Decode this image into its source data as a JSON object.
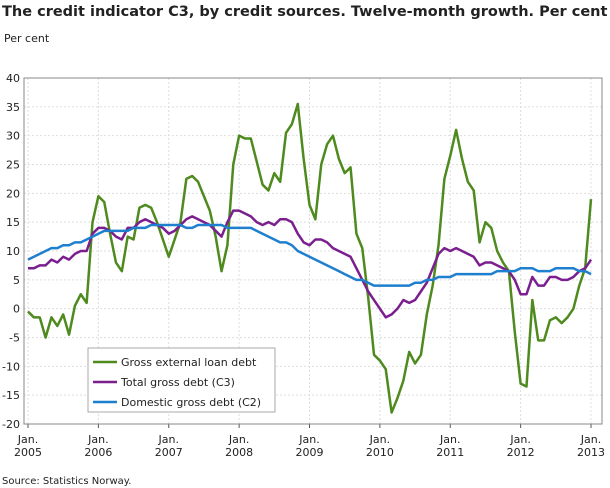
{
  "chart_data": {
    "type": "line",
    "title": "The credit indicator C3, by credit sources. Twelve-month growth. Per cent",
    "y_label": "Per cent",
    "source": "Source: Statistics Norway.",
    "categories": [
      "Jan. 2005",
      null,
      null,
      null,
      null,
      null,
      null,
      null,
      null,
      null,
      null,
      null,
      "Jan. 2006",
      null,
      null,
      null,
      null,
      null,
      null,
      null,
      null,
      null,
      null,
      null,
      "Jan. 2007",
      null,
      null,
      null,
      null,
      null,
      null,
      null,
      null,
      null,
      null,
      null,
      "Jan. 2008",
      null,
      null,
      null,
      null,
      null,
      null,
      null,
      null,
      null,
      null,
      null,
      "Jan. 2009",
      null,
      null,
      null,
      null,
      null,
      null,
      null,
      null,
      null,
      null,
      null,
      "Jan. 2010",
      null,
      null,
      null,
      null,
      null,
      null,
      null,
      null,
      null,
      null,
      null,
      "Jan. 2011",
      null,
      null,
      null,
      null,
      null,
      null,
      null,
      null,
      null,
      null,
      null,
      "Jan. 2012",
      null,
      null,
      null,
      null,
      null,
      null,
      null,
      null,
      null,
      null,
      null,
      "Jan. 2013"
    ],
    "series": [
      {
        "name": "Gross external loan debt",
        "color": "#4e8a1e",
        "values": [
          -0.5,
          -1.5,
          -1.5,
          -5,
          -1.5,
          -3,
          -1,
          -4.5,
          0.5,
          2.5,
          1,
          15,
          19.5,
          18.5,
          13,
          8,
          6.5,
          12.5,
          12,
          17.5,
          18,
          17.5,
          15,
          12,
          9,
          12,
          15,
          22.5,
          23,
          22,
          19.5,
          17,
          12.5,
          6.5,
          11,
          25,
          30,
          29.5,
          29.5,
          25.5,
          21.5,
          20.5,
          23.5,
          22,
          30.5,
          32,
          35.5,
          26,
          18,
          15.5,
          25,
          28.5,
          30,
          26,
          23.5,
          24.5,
          13,
          10.5,
          2,
          -8,
          -9,
          -10.5,
          -18,
          -15.5,
          -12.5,
          -7.5,
          -9.5,
          -8,
          -1,
          4,
          11,
          22.5,
          26.5,
          31,
          26,
          22,
          20.5,
          11.5,
          15,
          14,
          10,
          8,
          6.5,
          -4,
          -13,
          -13.5,
          1.5,
          -5.5,
          -5.5,
          -2,
          -1.5,
          -2.5,
          -1.5,
          0,
          4,
          7,
          19
        ]
      },
      {
        "name": "Total gross debt (C3)",
        "color": "#7b1f8f",
        "values": [
          7,
          7,
          7.5,
          7.5,
          8.5,
          8,
          9,
          8.5,
          9.5,
          10,
          10,
          13,
          14,
          14,
          13.5,
          12.5,
          12,
          14,
          14,
          15,
          15.5,
          15,
          14.5,
          14,
          13,
          13.5,
          14.5,
          15.5,
          16,
          15.5,
          15,
          14.5,
          13.5,
          12.5,
          15,
          17,
          17,
          16.5,
          16,
          15,
          14.5,
          15,
          14.5,
          15.5,
          15.5,
          15,
          13,
          11.5,
          11,
          12,
          12,
          11.5,
          10.5,
          10,
          9.5,
          9,
          7,
          5,
          3,
          1.5,
          0,
          -1.5,
          -1,
          0,
          1.5,
          1,
          1.5,
          3,
          4.5,
          7,
          9.5,
          10.5,
          10,
          10.5,
          10,
          9.5,
          9,
          7.5,
          8,
          8,
          7.5,
          7,
          6.5,
          5,
          2.5,
          2.5,
          5.5,
          4,
          4,
          5.5,
          5.5,
          5,
          5,
          5.5,
          6.5,
          7,
          8.5
        ]
      },
      {
        "name": "Domestic gross debt (C2)",
        "color": "#1f7fcf",
        "values": [
          8.5,
          9,
          9.5,
          10,
          10.5,
          10.5,
          11,
          11,
          11.5,
          11.5,
          12,
          12.5,
          13,
          13.5,
          13.5,
          13.5,
          13.5,
          13.5,
          14,
          14,
          14,
          14.5,
          14.5,
          14.5,
          14.5,
          14.5,
          14.5,
          14,
          14,
          14.5,
          14.5,
          14.5,
          14.5,
          14.5,
          14,
          14,
          14,
          14,
          14,
          13.5,
          13,
          12.5,
          12,
          11.5,
          11.5,
          11,
          10,
          9.5,
          9,
          8.5,
          8,
          7.5,
          7,
          6.5,
          6,
          5.5,
          5,
          5,
          4.5,
          4,
          4,
          4,
          4,
          4,
          4,
          4,
          4.5,
          4.5,
          5,
          5,
          5.5,
          5.5,
          5.5,
          6,
          6,
          6,
          6,
          6,
          6,
          6,
          6.5,
          6.5,
          6.5,
          6.5,
          7,
          7,
          7,
          6.5,
          6.5,
          6.5,
          7,
          7,
          7,
          7,
          6.5,
          6.5,
          6
        ]
      }
    ],
    "ylim": [
      -20,
      40
    ],
    "yticks": [
      -20,
      -15,
      -10,
      -5,
      0,
      5,
      10,
      15,
      20,
      25,
      30,
      35,
      40
    ],
    "grid": true
  }
}
